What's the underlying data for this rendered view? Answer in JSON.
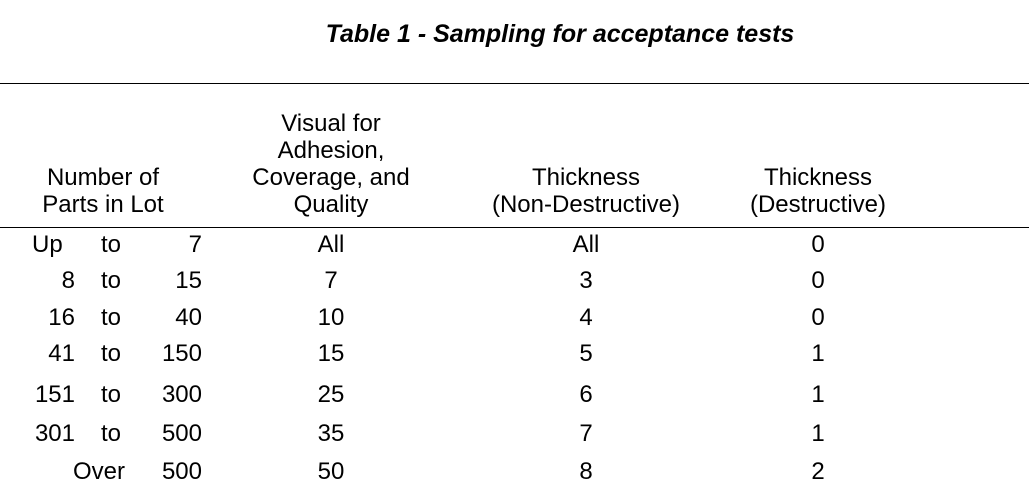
{
  "title": "Table 1 - Sampling for acceptance tests",
  "headers": {
    "lot": [
      "Number of",
      "Parts in Lot"
    ],
    "visual": [
      "Visual for",
      "Adhesion,",
      "Coverage, and",
      "Quality"
    ],
    "thick_nd": [
      "Thickness",
      "(Non-Destructive)"
    ],
    "thick_d": [
      "Thickness",
      "(Destructive)"
    ]
  },
  "rows": [
    {
      "from": "Up",
      "to": "to",
      "upto": "7",
      "visual": "All",
      "nd": "All",
      "d": "0"
    },
    {
      "from": "8",
      "to": "to",
      "upto": "15",
      "visual": "7",
      "nd": "3",
      "d": "0"
    },
    {
      "from": "16",
      "to": "to",
      "upto": "40",
      "visual": "10",
      "nd": "4",
      "d": "0"
    },
    {
      "from": "41",
      "to": "to",
      "upto": "150",
      "visual": "15",
      "nd": "5",
      "d": "1"
    },
    {
      "from": "151",
      "to": "to",
      "upto": "300",
      "visual": "25",
      "nd": "6",
      "d": "1"
    },
    {
      "from": "301",
      "to": "to",
      "upto": "500",
      "visual": "35",
      "nd": "7",
      "d": "1"
    }
  ],
  "last_row": {
    "over": "Over",
    "upto": "500",
    "visual": "50",
    "nd": "8",
    "d": "2"
  }
}
